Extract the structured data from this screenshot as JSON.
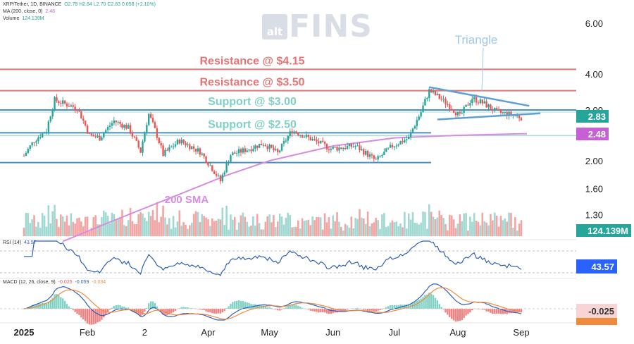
{
  "legend": {
    "symbol": "XRP/Tether, 1D, BINANCE",
    "ohlc": "O2.78 H2.84 L2.70 C2.83 0.058 (+2.10%)",
    "ma_label": "MA (200, close, 0)",
    "ma_value": "2.48",
    "volume_label": "Volume",
    "volume_value": "124.139M",
    "rsi_label": "RSI (14)",
    "rsi_value": "43.57",
    "macd_label": "MACD (12, 26, close, 9)",
    "macd_values": [
      "-0.025",
      "-0.059",
      "-0.034"
    ]
  },
  "watermark": {
    "box_text": "alt",
    "text": "FINS"
  },
  "tags": {
    "price": "2.83",
    "ma": "2.48",
    "volume": "124.139M",
    "rsi": "43.57",
    "macd": "-0.025"
  },
  "colors": {
    "up": "#26a69a",
    "down": "#ef5350",
    "resistance": "#e57373",
    "support_line": "#4a90c2",
    "support_text": "#7fd1c4",
    "sma": "#d68ce0",
    "triangle": "#5f9fd4",
    "triangle_text": "#9ec8e8",
    "rsi": "#2f5fb8",
    "macd": "#2f5fb8",
    "signal": "#f08a3c",
    "tag_price": "#26a69a",
    "tag_ma": "#c760d6",
    "tag_blue": "#2962ff",
    "tag_macd": "#f9d4d4"
  },
  "chart_data": {
    "type": "candlestick",
    "symbol": "XRP/Tether",
    "timeframe": "1D",
    "exchange": "BINANCE",
    "x_axis": {
      "start": "2025-01-01",
      "end": "2025-09-01",
      "tick_labels": [
        "2025",
        "Feb",
        "2",
        "Apr",
        "May",
        "Jun",
        "Jul",
        "Aug",
        "Sep"
      ]
    },
    "price_axis": {
      "scale": "log",
      "tick_labels": [
        "6.00",
        "4.00",
        "3.00",
        "2.00",
        "1.60",
        "1.30"
      ]
    },
    "last_close": 2.83,
    "ohlc_last": {
      "open": 2.78,
      "high": 2.84,
      "low": 2.7,
      "close": 2.83,
      "change": 0.058,
      "change_pct": "+2.10%"
    },
    "close_path": [
      {
        "date": "2025-01-01",
        "close": 2.08
      },
      {
        "date": "2025-01-06",
        "close": 2.35
      },
      {
        "date": "2025-01-12",
        "close": 2.55
      },
      {
        "date": "2025-01-16",
        "close": 3.25
      },
      {
        "date": "2025-01-21",
        "close": 3.15
      },
      {
        "date": "2025-01-27",
        "close": 3.05
      },
      {
        "date": "2025-02-02",
        "close": 2.45
      },
      {
        "date": "2025-02-07",
        "close": 2.4
      },
      {
        "date": "2025-02-14",
        "close": 2.75
      },
      {
        "date": "2025-02-21",
        "close": 2.6
      },
      {
        "date": "2025-02-27",
        "close": 2.15
      },
      {
        "date": "2025-03-03",
        "close": 2.9
      },
      {
        "date": "2025-03-10",
        "close": 2.1
      },
      {
        "date": "2025-03-18",
        "close": 2.35
      },
      {
        "date": "2025-03-28",
        "close": 2.15
      },
      {
        "date": "2025-04-07",
        "close": 1.7
      },
      {
        "date": "2025-04-12",
        "close": 2.1
      },
      {
        "date": "2025-04-21",
        "close": 2.2
      },
      {
        "date": "2025-04-28",
        "close": 2.3
      },
      {
        "date": "2025-05-05",
        "close": 2.12
      },
      {
        "date": "2025-05-12",
        "close": 2.55
      },
      {
        "date": "2025-05-20",
        "close": 2.4
      },
      {
        "date": "2025-05-31",
        "close": 2.2
      },
      {
        "date": "2025-06-12",
        "close": 2.25
      },
      {
        "date": "2025-06-22",
        "close": 2.0
      },
      {
        "date": "2025-06-30",
        "close": 2.25
      },
      {
        "date": "2025-07-08",
        "close": 2.4
      },
      {
        "date": "2025-07-14",
        "close": 2.95
      },
      {
        "date": "2025-07-18",
        "close": 3.5
      },
      {
        "date": "2025-07-22",
        "close": 3.35
      },
      {
        "date": "2025-07-28",
        "close": 3.1
      },
      {
        "date": "2025-08-02",
        "close": 2.85
      },
      {
        "date": "2025-08-08",
        "close": 3.3
      },
      {
        "date": "2025-08-14",
        "close": 3.15
      },
      {
        "date": "2025-08-20",
        "close": 2.95
      },
      {
        "date": "2025-08-26",
        "close": 2.9
      },
      {
        "date": "2025-09-01",
        "close": 2.83
      }
    ],
    "horizontal_levels": [
      {
        "label": "Resistance @ $4.15",
        "price": 4.15,
        "kind": "resistance"
      },
      {
        "label": "Resistance @ $3.50",
        "price": 3.5,
        "kind": "resistance"
      },
      {
        "label": "Support @ $3.00",
        "price": 3.0,
        "kind": "support"
      },
      {
        "label": "Support @ $2.50",
        "price": 2.5,
        "kind": "support"
      }
    ],
    "lower_band": 1.97,
    "triangle": {
      "label": "Triangle",
      "upper": [
        {
          "date": "2025-07-18",
          "price": 3.6
        },
        {
          "date": "2025-08-29",
          "price": 3.1
        }
      ],
      "lower": [
        {
          "date": "2025-07-22",
          "price": 2.78
        },
        {
          "date": "2025-09-02",
          "price": 2.92
        }
      ]
    },
    "sma_200": {
      "label": "200 SMA",
      "last": 2.48,
      "points": [
        {
          "date": "2025-01-20",
          "price": 1.05
        },
        {
          "date": "2025-02-15",
          "price": 1.25
        },
        {
          "date": "2025-03-15",
          "price": 1.5
        },
        {
          "date": "2025-04-10",
          "price": 1.78
        },
        {
          "date": "2025-05-01",
          "price": 2.0
        },
        {
          "date": "2025-06-01",
          "price": 2.25
        },
        {
          "date": "2025-07-01",
          "price": 2.4
        },
        {
          "date": "2025-08-01",
          "price": 2.45
        },
        {
          "date": "2025-09-01",
          "price": 2.48
        }
      ]
    },
    "volume": {
      "last": "124.139M"
    },
    "rsi": {
      "period": 14,
      "last": 43.57,
      "upper_band": 70,
      "lower_band": 30
    },
    "macd": {
      "fast": 12,
      "slow": 26,
      "signal": 9,
      "histogram": -0.025,
      "macd": -0.059,
      "signal_value": -0.034
    }
  }
}
